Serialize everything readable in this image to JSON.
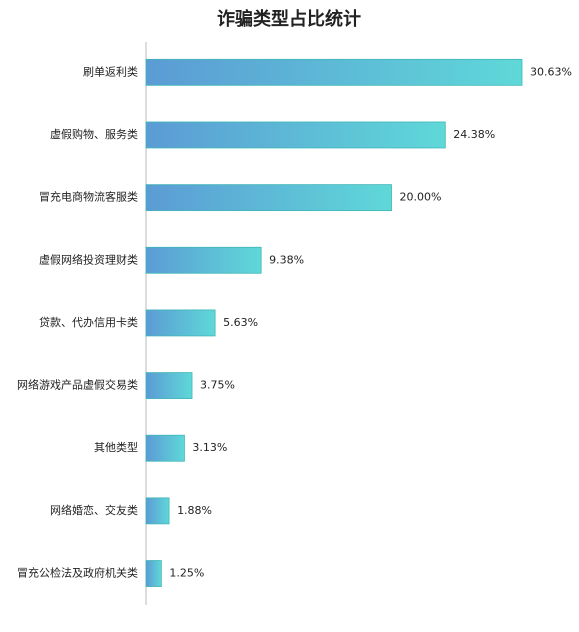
{
  "chart_data": {
    "type": "hbar",
    "title": "诈骗类型占比统计",
    "categories": [
      "刷单返利类",
      "虚假购物、服务类",
      "冒充电商物流客服类",
      "虚假网络投资理财类",
      "贷款、代办信用卡类",
      "网络游戏产品虚假交易类",
      "其他类型",
      "网络婚恋、交友类",
      "冒充公检法及政府机关类"
    ],
    "values": [
      30.63,
      24.38,
      20.0,
      9.38,
      5.63,
      3.75,
      3.13,
      1.88,
      1.25
    ],
    "value_labels": [
      "30.63%",
      "24.38%",
      "20.00%",
      "9.38%",
      "5.63%",
      "3.75%",
      "3.13%",
      "1.88%",
      "1.25%"
    ],
    "color": [
      "#5b9bd5",
      "#5fd8d8"
    ]
  }
}
